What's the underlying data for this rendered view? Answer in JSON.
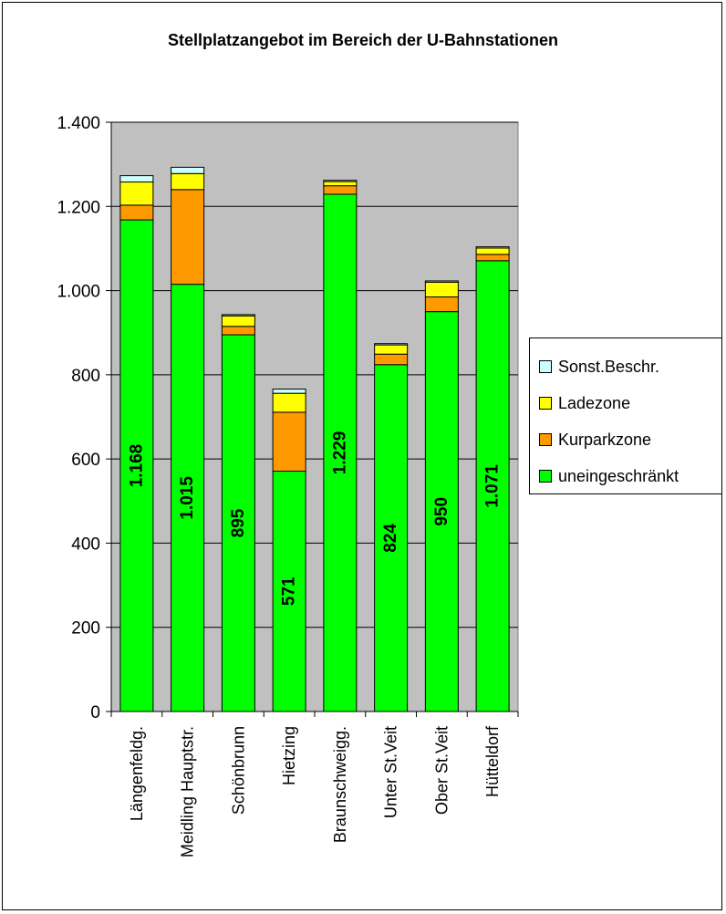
{
  "chart_data": {
    "type": "bar",
    "stacked": true,
    "title": "Stellplatzangebot im Bereich der U-Bahnstationen",
    "xlabel": "",
    "ylabel": "",
    "ylim": [
      0,
      1400
    ],
    "yticks": [
      0,
      200,
      400,
      600,
      800,
      1000,
      1200,
      1400
    ],
    "ytick_labels": [
      "0",
      "200",
      "400",
      "600",
      "800",
      "1.000",
      "1.200",
      "1.400"
    ],
    "grid": true,
    "legend_position": "right",
    "plot_background": "#C0C0C0",
    "categories": [
      "Längenfeldg.",
      "Meidling Hauptstr.",
      "Schönbrunn",
      "Hietzing",
      "Braunschweigg.",
      "Unter St.Veit",
      "Ober St.Veit",
      "Hütteldorf"
    ],
    "series": [
      {
        "name": "uneingeschränkt",
        "color": "#00FF00",
        "values": [
          1168,
          1015,
          895,
          571,
          1229,
          824,
          950,
          1071
        ]
      },
      {
        "name": "Kurparkzone",
        "color": "#FF9900",
        "values": [
          35,
          225,
          20,
          140,
          20,
          25,
          35,
          15
        ]
      },
      {
        "name": "Ladezone",
        "color": "#FFFF00",
        "values": [
          55,
          38,
          25,
          45,
          10,
          22,
          35,
          15
        ]
      },
      {
        "name": "Sonst.Beschr.",
        "color": "#CCFFFF",
        "values": [
          15,
          15,
          3,
          10,
          3,
          3,
          3,
          3
        ]
      }
    ],
    "data_labels": [
      "1.168",
      "1.015",
      "895",
      "571",
      "1.229",
      "824",
      "950",
      "1.071"
    ]
  },
  "legend": {
    "items": [
      {
        "label": "Sonst.Beschr.",
        "color": "#CCFFFF"
      },
      {
        "label": "Ladezone",
        "color": "#FFFF00"
      },
      {
        "label": "Kurparkzone",
        "color": "#FF9900"
      },
      {
        "label": "uneingeschränkt",
        "color": "#00FF00"
      }
    ]
  }
}
